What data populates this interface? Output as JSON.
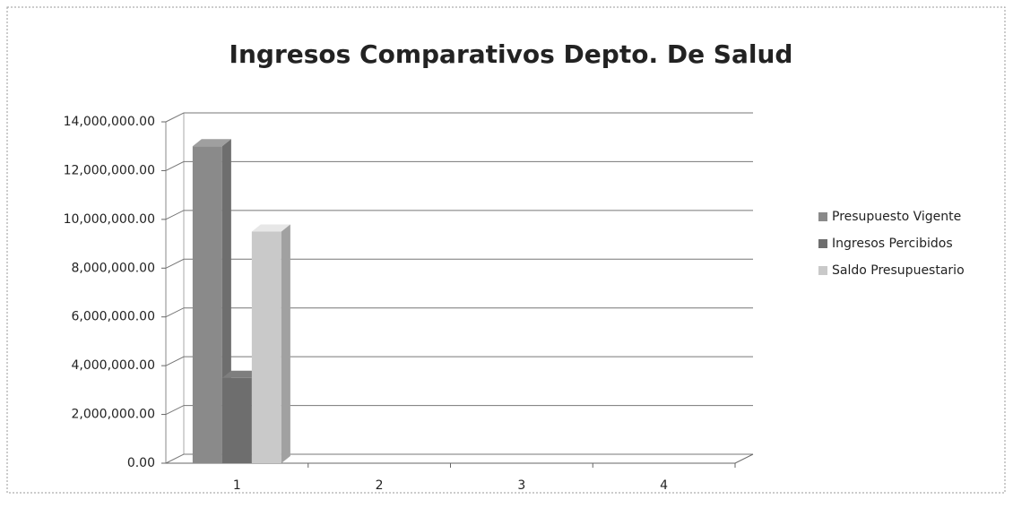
{
  "chart_data": {
    "type": "bar",
    "title": "Ingresos Comparativos Depto. De Salud",
    "categories": [
      "1",
      "2",
      "3",
      "4"
    ],
    "series": [
      {
        "name": "Presupuesto Vigente",
        "color": "#8a8a8a",
        "values": [
          13000000,
          null,
          null,
          null
        ]
      },
      {
        "name": "Ingresos Percibidos",
        "color": "#6e6e6e",
        "values": [
          3500000,
          null,
          null,
          null
        ]
      },
      {
        "name": "Saldo Presupuestario",
        "color": "#c9c9c9",
        "values": [
          9500000,
          null,
          null,
          null
        ]
      }
    ],
    "ylim": [
      0,
      14000000
    ],
    "yticks": [
      {
        "value": 0,
        "label": "0.00"
      },
      {
        "value": 2000000,
        "label": "2,000,000.00"
      },
      {
        "value": 4000000,
        "label": "4,000,000.00"
      },
      {
        "value": 6000000,
        "label": "6,000,000.00"
      },
      {
        "value": 8000000,
        "label": "8,000,000.00"
      },
      {
        "value": 10000000,
        "label": "10,000,000.00"
      },
      {
        "value": 12000000,
        "label": "12,000,000.00"
      },
      {
        "value": 14000000,
        "label": "14,000,000.00"
      }
    ],
    "grid": true,
    "legend": "right"
  }
}
